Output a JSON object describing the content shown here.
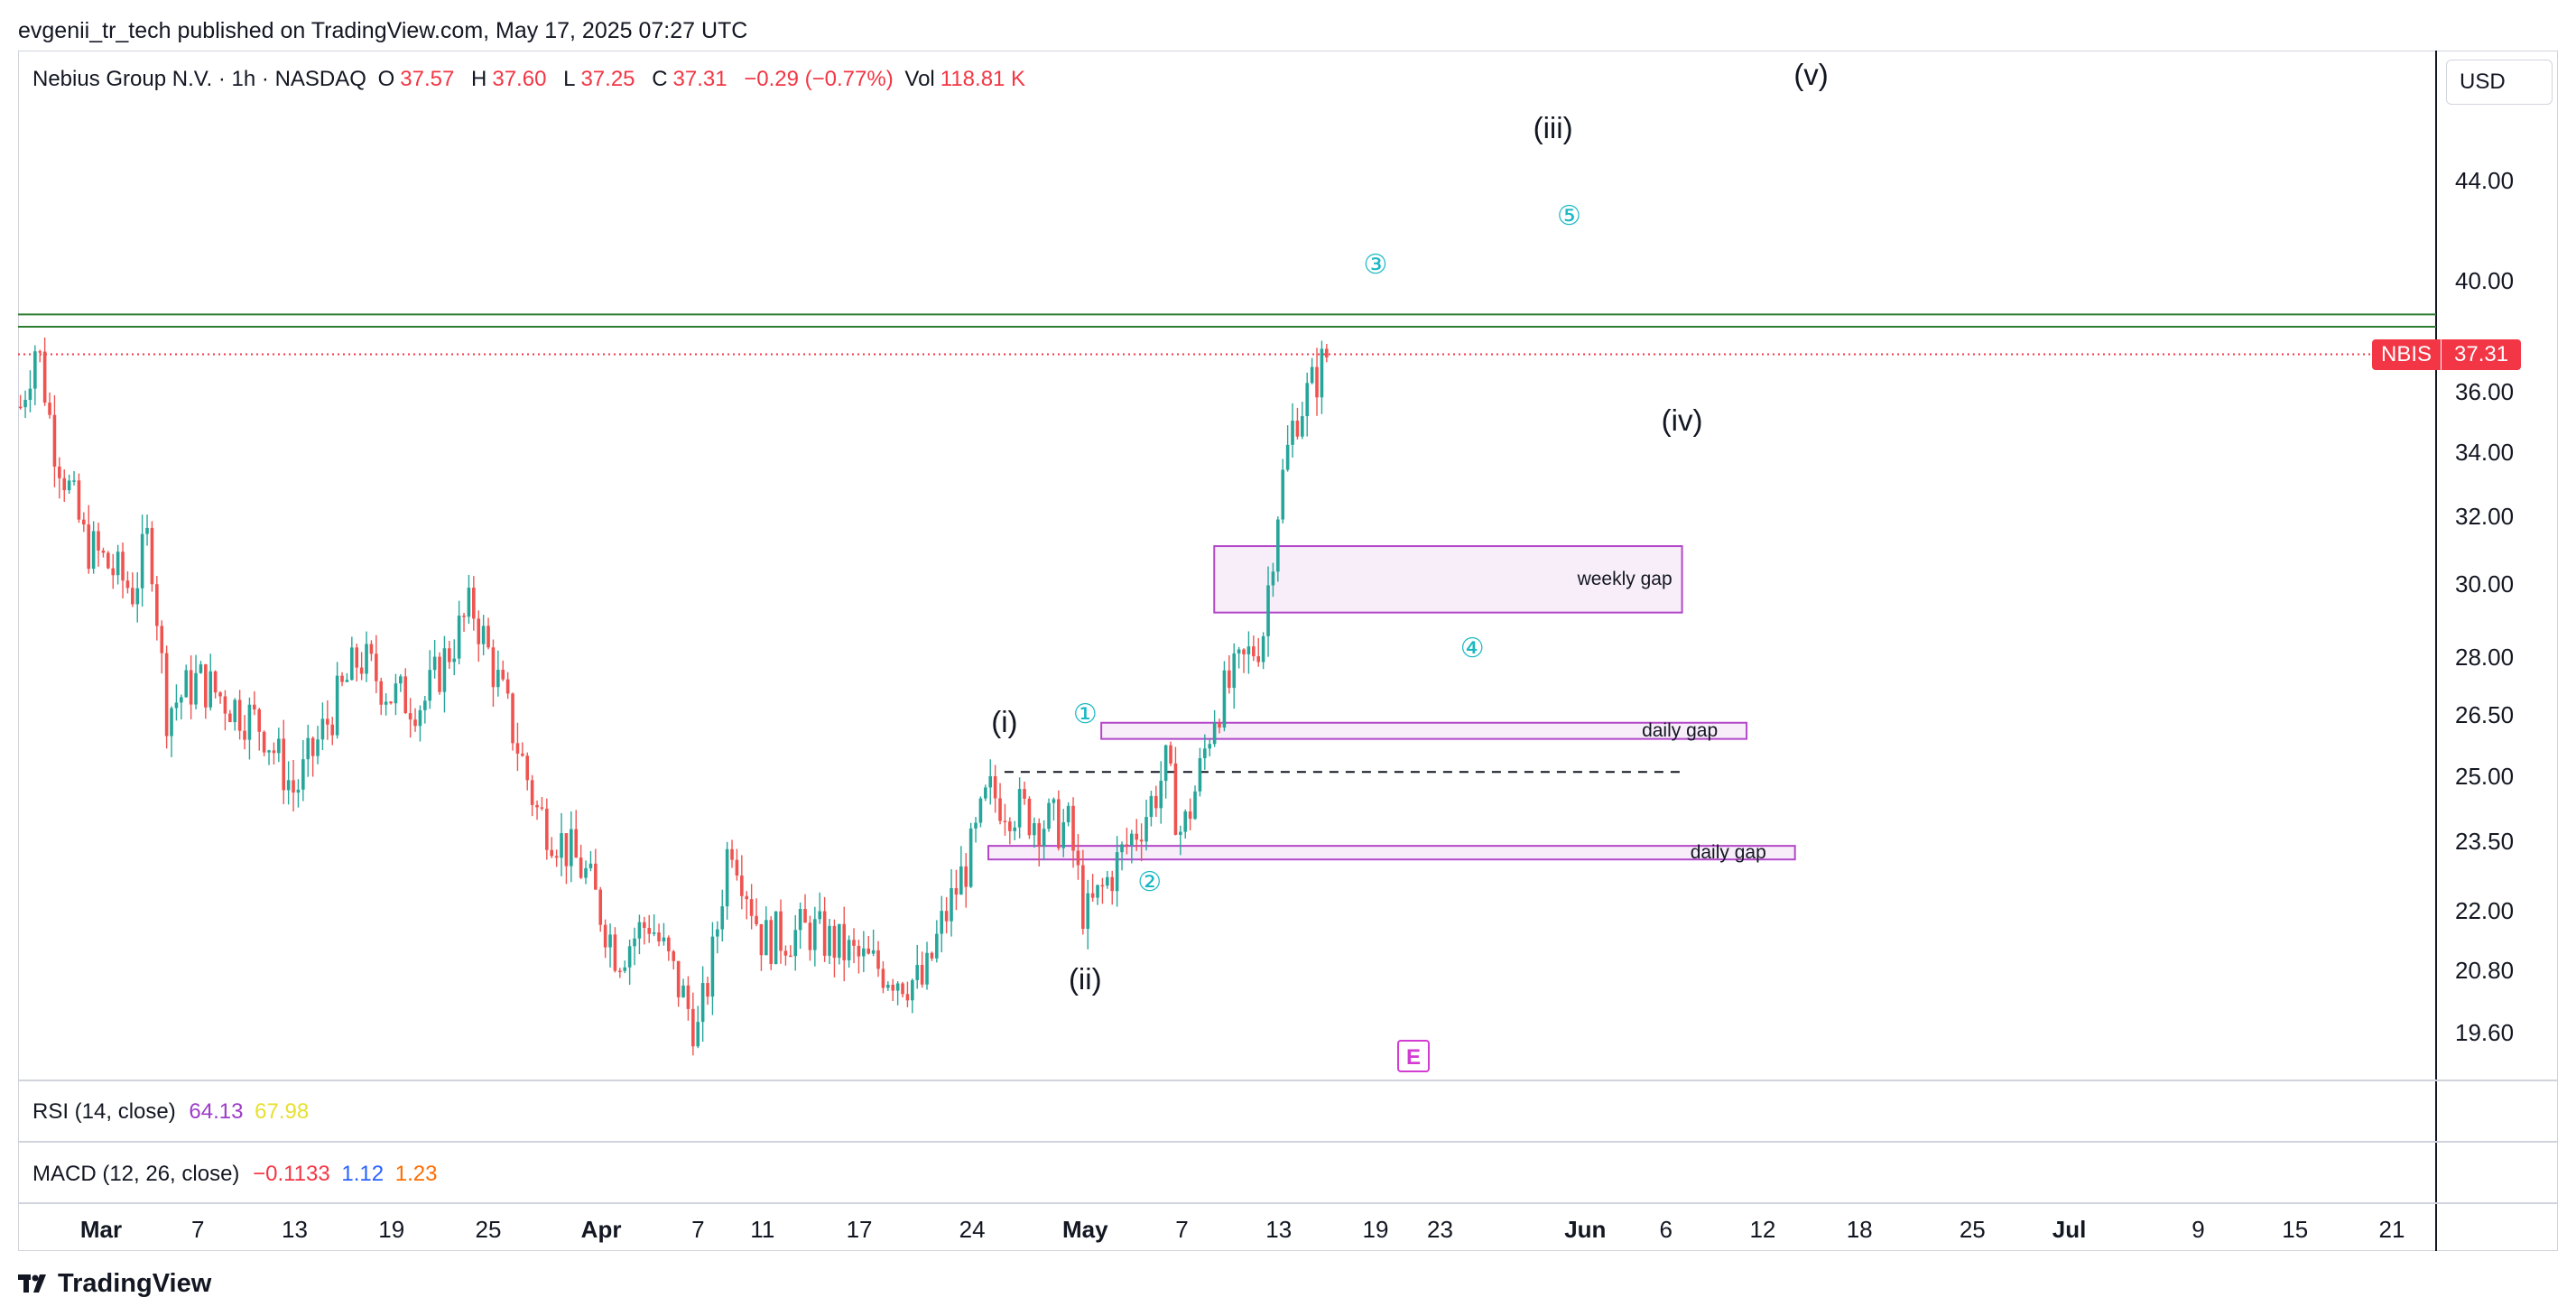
{
  "header": {
    "publish_line": "evgenii_tr_tech published on TradingView.com, May 17, 2025 07:27 UTC"
  },
  "legend": {
    "instrument": "Nebius Group N.V. · 1h · NASDAQ",
    "o_label": "O",
    "o_value": "37.57",
    "h_label": "H",
    "h_value": "37.60",
    "l_label": "L",
    "l_value": "37.25",
    "c_label": "C",
    "c_value": "37.31",
    "change": "−0.29 (−0.77%)",
    "vol_label": "Vol",
    "vol_value": "118.81 K"
  },
  "currency": "USD",
  "price_tag": {
    "symbol": "NBIS",
    "value": "37.31"
  },
  "indicators": {
    "rsi": {
      "name": "RSI (14, close)",
      "v1": "64.13",
      "v2": "67.98"
    },
    "macd": {
      "name": "MACD (12, 26, close)",
      "v1": "−0.1133",
      "v2": "1.12",
      "v3": "1.23"
    }
  },
  "footer": {
    "brand": "TradingView"
  },
  "colors": {
    "up": "#26a69a",
    "down": "#ef5350",
    "wave_minor": "#1bb8c4",
    "gap_border": "#b347c8",
    "gap_fill": "#f7eef9",
    "resistance": "#2e7d32",
    "last_price": "#f23645"
  },
  "chart_data": {
    "type": "candlestick",
    "y_axis_labels": [
      "44.00",
      "40.00",
      "36.00",
      "34.00",
      "32.00",
      "30.00",
      "28.00",
      "26.50",
      "25.00",
      "23.50",
      "22.00",
      "20.80",
      "19.60"
    ],
    "y_axis_values": [
      44.0,
      40.0,
      36.0,
      34.0,
      32.0,
      30.0,
      28.0,
      26.5,
      25.0,
      23.5,
      22.0,
      20.8,
      19.6
    ],
    "scale": "log",
    "x_axis_labels": [
      {
        "text": "Mar",
        "date": "2025-03-01",
        "month": true
      },
      {
        "text": "7",
        "date": "2025-03-07"
      },
      {
        "text": "13",
        "date": "2025-03-13"
      },
      {
        "text": "19",
        "date": "2025-03-19"
      },
      {
        "text": "25",
        "date": "2025-03-25"
      },
      {
        "text": "Apr",
        "date": "2025-04-01",
        "month": true
      },
      {
        "text": "7",
        "date": "2025-04-07"
      },
      {
        "text": "11",
        "date": "2025-04-11"
      },
      {
        "text": "17",
        "date": "2025-04-17"
      },
      {
        "text": "24",
        "date": "2025-04-24"
      },
      {
        "text": "May",
        "date": "2025-05-01",
        "month": true
      },
      {
        "text": "7",
        "date": "2025-05-07"
      },
      {
        "text": "13",
        "date": "2025-05-13"
      },
      {
        "text": "19",
        "date": "2025-05-19"
      },
      {
        "text": "23",
        "date": "2025-05-23"
      },
      {
        "text": "Jun",
        "date": "2025-06-01",
        "month": true
      },
      {
        "text": "6",
        "date": "2025-06-06"
      },
      {
        "text": "12",
        "date": "2025-06-12"
      },
      {
        "text": "18",
        "date": "2025-06-18"
      },
      {
        "text": "25",
        "date": "2025-06-25"
      },
      {
        "text": "Jul",
        "date": "2025-07-01",
        "month": true
      },
      {
        "text": "9",
        "date": "2025-07-09"
      },
      {
        "text": "15",
        "date": "2025-07-15"
      },
      {
        "text": "21",
        "date": "2025-07-21"
      }
    ],
    "price_path": [
      {
        "date": "2025-02-24",
        "close": 35.5
      },
      {
        "date": "2025-02-25",
        "close": 37.8
      },
      {
        "date": "2025-02-26",
        "close": 34.5
      },
      {
        "date": "2025-02-28",
        "close": 31.2
      },
      {
        "date": "2025-03-03",
        "close": 29.8
      },
      {
        "date": "2025-03-04",
        "close": 31.5
      },
      {
        "date": "2025-03-05",
        "close": 26.6
      },
      {
        "date": "2025-03-07",
        "close": 27.4
      },
      {
        "date": "2025-03-11",
        "close": 26.2
      },
      {
        "date": "2025-03-13",
        "close": 24.6
      },
      {
        "date": "2025-03-17",
        "close": 28.0
      },
      {
        "date": "2025-03-19",
        "close": 27.0
      },
      {
        "date": "2025-03-21",
        "close": 26.8
      },
      {
        "date": "2025-03-24",
        "close": 29.4
      },
      {
        "date": "2025-03-26",
        "close": 26.8
      },
      {
        "date": "2025-03-28",
        "close": 24.2
      },
      {
        "date": "2025-03-31",
        "close": 22.8
      },
      {
        "date": "2025-04-02",
        "close": 21.1
      },
      {
        "date": "2025-04-04",
        "close": 21.8
      },
      {
        "date": "2025-04-07",
        "close": 19.6
      },
      {
        "date": "2025-04-08",
        "close": 21.2
      },
      {
        "date": "2025-04-09",
        "close": 23.7
      },
      {
        "date": "2025-04-11",
        "close": 21.4
      },
      {
        "date": "2025-04-14",
        "close": 21.6
      },
      {
        "date": "2025-04-17",
        "close": 21.0
      },
      {
        "date": "2025-04-21",
        "close": 20.5
      },
      {
        "date": "2025-04-22",
        "close": 21.6
      },
      {
        "date": "2025-04-24",
        "close": 23.3
      },
      {
        "date": "2025-04-25",
        "close": 24.6
      },
      {
        "date": "2025-04-28",
        "close": 24.0
      },
      {
        "date": "2025-04-30",
        "close": 23.8
      },
      {
        "date": "2025-05-01",
        "close": 21.8
      },
      {
        "date": "2025-05-02",
        "close": 22.4
      },
      {
        "date": "2025-05-05",
        "close": 24.3
      },
      {
        "date": "2025-05-06",
        "close": 25.2
      },
      {
        "date": "2025-05-07",
        "close": 23.6
      },
      {
        "date": "2025-05-08",
        "close": 24.9
      },
      {
        "date": "2025-05-09",
        "close": 26.6
      },
      {
        "date": "2025-05-12",
        "close": 28.6
      },
      {
        "date": "2025-05-13",
        "close": 32.5
      },
      {
        "date": "2025-05-14",
        "close": 35.2
      },
      {
        "date": "2025-05-15",
        "close": 36.1
      },
      {
        "date": "2025-05-16",
        "close": 37.31
      }
    ],
    "last_price": 37.31,
    "resistance_zone": [
      38.3,
      38.75
    ],
    "annotations": {
      "waves": [
        {
          "label": "(i)",
          "date": "2025-04-26",
          "price": 26.3
        },
        {
          "label": "(ii)",
          "date": "2025-05-01",
          "price": 20.6
        },
        {
          "label": "(iii)",
          "date": "2025-05-30",
          "price": 46.2
        },
        {
          "label": "(iv)",
          "date": "2025-06-07",
          "price": 35.0
        },
        {
          "label": "(v)",
          "date": "2025-06-15",
          "price": 48.6
        }
      ],
      "minor_waves": [
        {
          "label": "①",
          "date": "2025-05-01",
          "price": 26.5
        },
        {
          "label": "②",
          "date": "2025-05-05",
          "price": 22.6
        },
        {
          "label": "③",
          "date": "2025-05-19",
          "price": 40.6
        },
        {
          "label": "④",
          "date": "2025-05-25",
          "price": 28.2
        },
        {
          "label": "⑤",
          "date": "2025-05-31",
          "price": 42.5
        }
      ],
      "gaps": [
        {
          "label": "weekly gap",
          "from": "2025-05-09",
          "to": "2025-06-07",
          "low": 29.2,
          "high": 31.1
        },
        {
          "label": "daily gap",
          "from": "2025-05-02",
          "to": "2025-06-11",
          "low": 25.9,
          "high": 26.3
        },
        {
          "label": "daily gap",
          "from": "2025-04-25",
          "to": "2025-06-14",
          "low": 23.1,
          "high": 23.4
        }
      ],
      "dashed_level": 25.1,
      "earnings_marker": "E"
    }
  }
}
